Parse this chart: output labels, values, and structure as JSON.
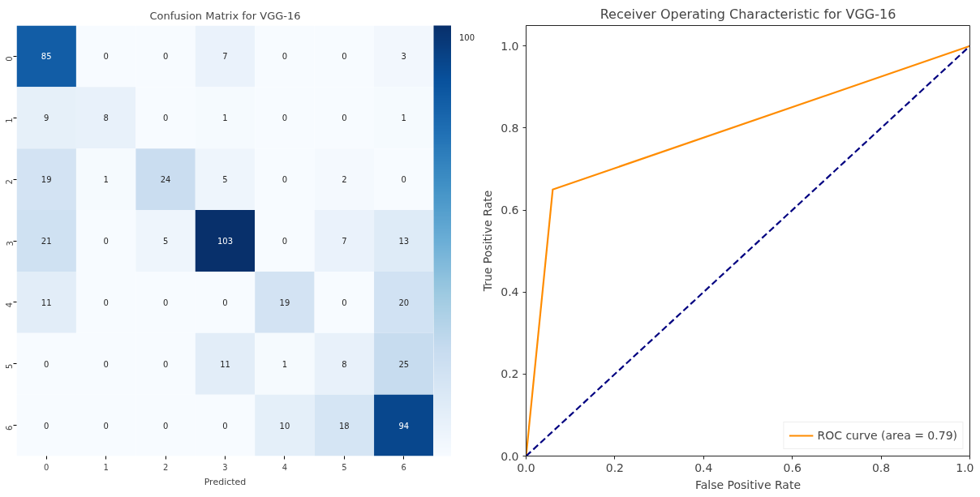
{
  "chart_data": [
    {
      "type": "heatmap",
      "title": "Confusion Matrix for VGG-16",
      "xlabel": "Predicted",
      "categories": [
        "0",
        "1",
        "2",
        "3",
        "4",
        "5",
        "6"
      ],
      "y_categories": [
        "0",
        "1",
        "2",
        "3",
        "4",
        "5",
        "6"
      ],
      "cells": [
        [
          85,
          0,
          0,
          7,
          0,
          0,
          3
        ],
        [
          9,
          8,
          0,
          1,
          0,
          0,
          1
        ],
        [
          19,
          1,
          24,
          5,
          0,
          2,
          0
        ],
        [
          21,
          0,
          5,
          103,
          0,
          7,
          13
        ],
        [
          11,
          0,
          0,
          0,
          19,
          0,
          20
        ],
        [
          0,
          0,
          0,
          11,
          1,
          8,
          25
        ],
        [
          0,
          0,
          0,
          0,
          10,
          18,
          94
        ]
      ],
      "annotations": [
        "100"
      ],
      "data_labels": true
    },
    {
      "type": "line",
      "title": "Receiver Operating Characteristic for VGG-16",
      "xlabel": "False Positive Rate",
      "ylabel": "True Positive Rate",
      "xlim": [
        0,
        1
      ],
      "ylim": [
        0,
        1.05
      ],
      "xticks": [
        {
          "value": 0,
          "label": "0.0"
        },
        0.2,
        0.4,
        0.6,
        0.8,
        {
          "value": 1,
          "label": "1.0"
        }
      ],
      "yticks": [
        {
          "value": 0,
          "label": "0.0"
        },
        0.2,
        0.4,
        0.6,
        0.8,
        {
          "value": 1,
          "label": "1.0"
        }
      ],
      "legend": "bottom right",
      "series": [
        {
          "name": "ROC curve (area = 0.79)",
          "color": "#ff8c00",
          "x": [
            0,
            0.06,
            1
          ],
          "values": [
            0,
            0.65,
            1
          ],
          "line_style": "solid"
        },
        {
          "color": "#000080",
          "x": [
            0,
            1
          ],
          "values": [
            0,
            1
          ],
          "line_style": "dashed"
        }
      ]
    }
  ]
}
